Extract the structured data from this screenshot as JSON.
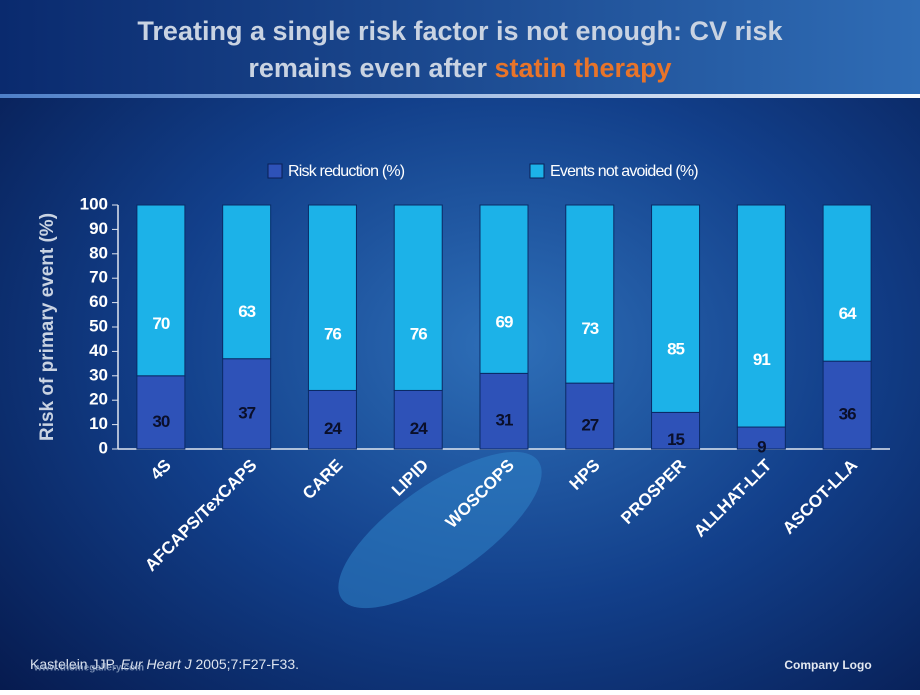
{
  "slide": {
    "title_line1": "Treating a single risk factor is not enough: CV risk",
    "title_line2": "remains even after ",
    "title_highlight": "statin therapy",
    "citation_author": "Kastelein JJP. ",
    "citation_journal": "Eur Heart J",
    "citation_rest": " 2005;7:F27-F33.",
    "watermark": "www.themegallery.com",
    "logo": "Company Logo"
  },
  "chart_data": {
    "type": "stacked_bar",
    "y_label": "Risk of primary event (%)",
    "categories": [
      "4S",
      "AFCAPS/TexCAPS",
      "CARE",
      "LIPID",
      "WOSCOPS",
      "HPS",
      "PROSPER",
      "ALLHAT-LLT",
      "ASCOT-LLA"
    ],
    "series": [
      {
        "name": "Risk reduction (%)",
        "color": "#2e52b8",
        "values": [
          30,
          37,
          24,
          24,
          31,
          27,
          15,
          9,
          36
        ]
      },
      {
        "name": "Events not avoided (%)",
        "color": "#1cb2e8",
        "values": [
          70,
          63,
          76,
          76,
          69,
          73,
          85,
          91,
          64
        ]
      }
    ],
    "ylim": [
      0,
      100
    ],
    "yticks": [
      0,
      10,
      20,
      30,
      40,
      50,
      60,
      70,
      80,
      90,
      100
    ],
    "grid": false,
    "legend": "top"
  }
}
